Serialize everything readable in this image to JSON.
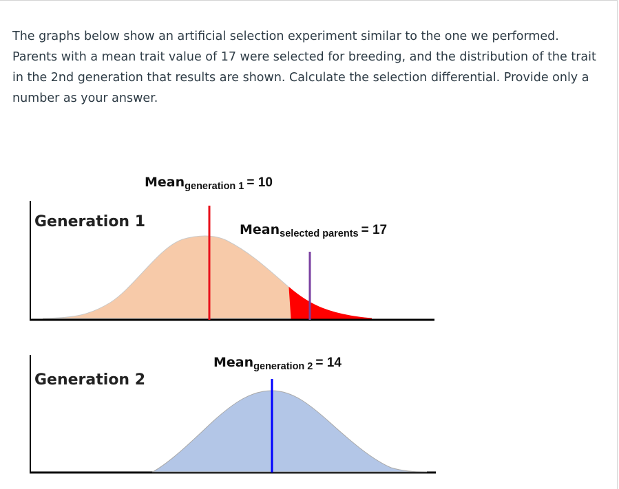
{
  "question": {
    "text": "The graphs below show an artificial selection experiment similar to the one we performed. Parents with a mean trait value of 17 were selected for breeding, and the distribution of the trait in the 2nd generation that results are shown. Calculate the selection differential. Provide only a number as your answer."
  },
  "figure": {
    "generation1": {
      "title": "Generation 1",
      "mean_label": {
        "prefix": "Mean",
        "subscript": "generation 1",
        "suffix": "= 10"
      },
      "selected_label": {
        "prefix": "Mean",
        "subscript": "selected parents",
        "suffix": "= 17"
      }
    },
    "generation2": {
      "title": "Generation 2",
      "mean_label": {
        "prefix": "Mean",
        "subscript": "generation 2",
        "suffix": "= 14"
      }
    },
    "colors": {
      "gen1_fill": "#f7caa9",
      "selected_fill": "#ff0000",
      "gen1_mean_line": "#e8101a",
      "selected_mean_line": "#7a3fa0",
      "gen2_fill": "#b3c6e7",
      "gen2_mean_line": "#0000ff",
      "axis": "#000000"
    }
  }
}
